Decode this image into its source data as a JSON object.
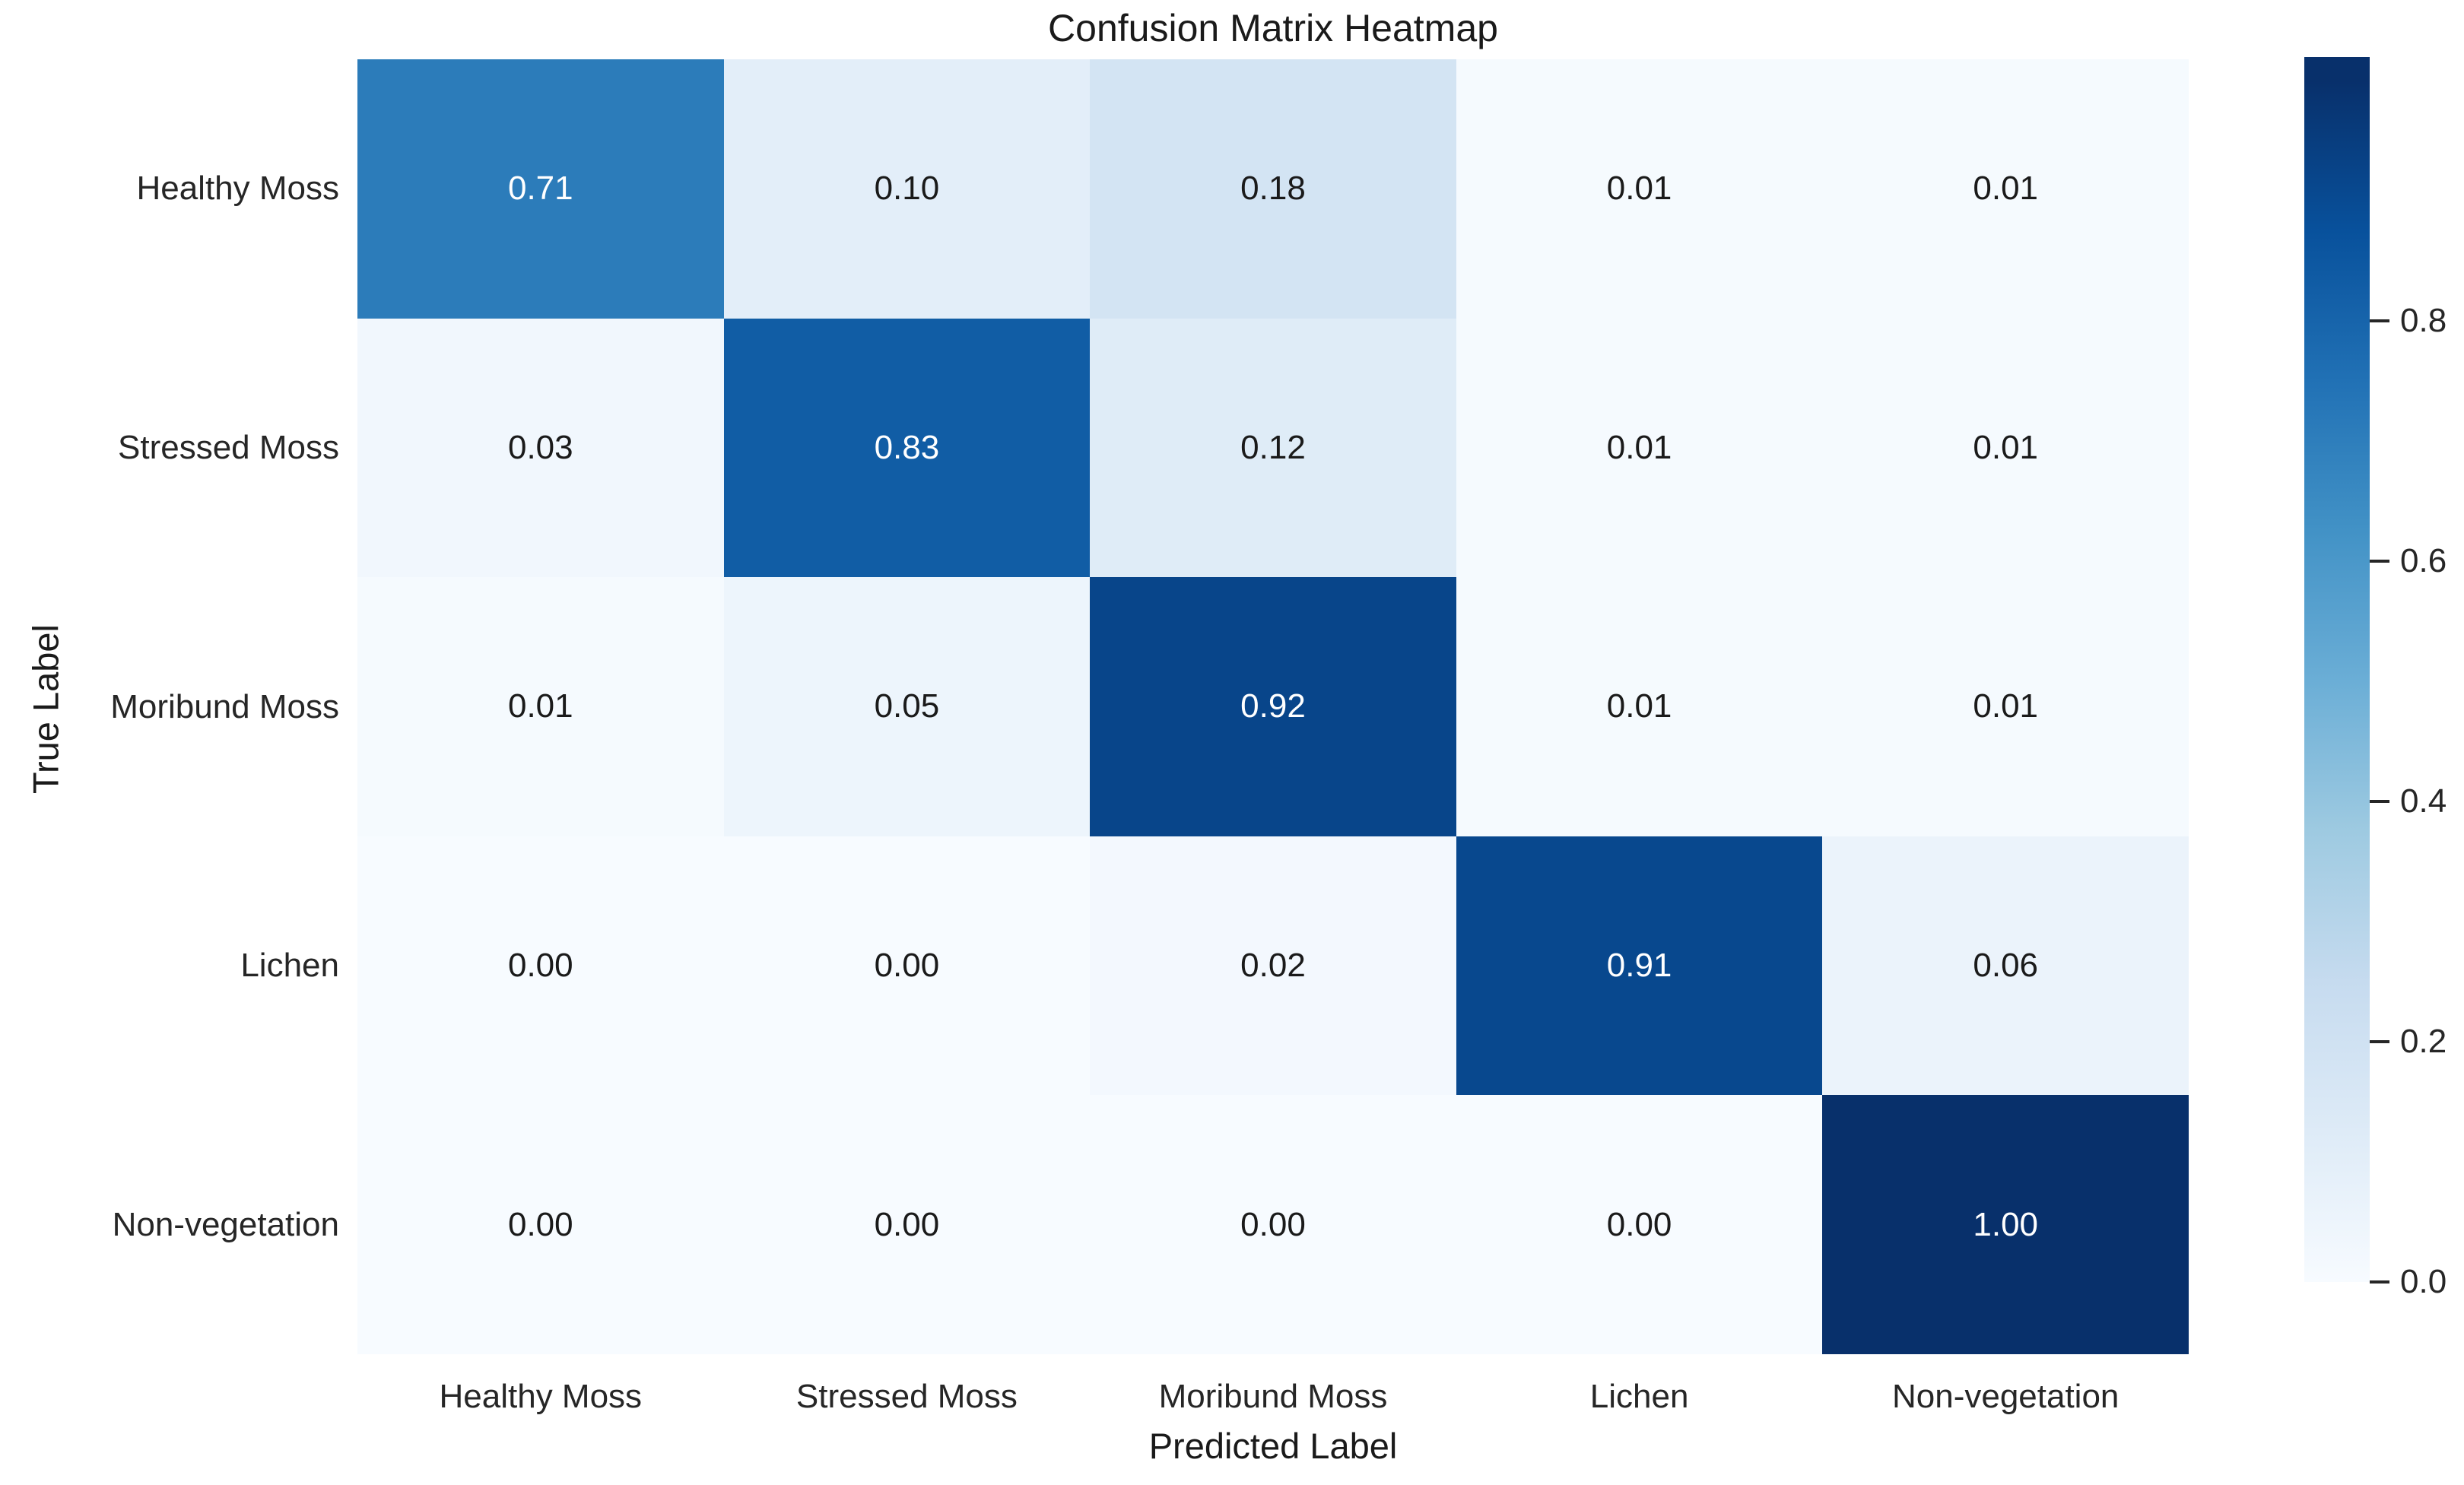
{
  "title": "Confusion Matrix Heatmap",
  "chart_data": {
    "type": "heatmap",
    "title": "Confusion Matrix Heatmap",
    "xlabel": "Predicted Label",
    "ylabel": "True Label",
    "x_categories": [
      "Healthy Moss",
      "Stressed Moss",
      "Moribund Moss",
      "Lichen",
      "Non-vegetation"
    ],
    "y_categories": [
      "Healthy Moss",
      "Stressed Moss",
      "Moribund Moss",
      "Lichen",
      "Non-vegetation"
    ],
    "matrix": [
      [
        0.71,
        0.1,
        0.18,
        0.01,
        0.01
      ],
      [
        0.03,
        0.83,
        0.12,
        0.01,
        0.01
      ],
      [
        0.01,
        0.05,
        0.92,
        0.01,
        0.01
      ],
      [
        0.0,
        0.0,
        0.02,
        0.91,
        0.06
      ],
      [
        0.0,
        0.0,
        0.0,
        0.0,
        1.0
      ]
    ],
    "value_decimals": 2,
    "colormap": "Blues",
    "grid": false,
    "legend_position": "right-colorbar",
    "colorbar": {
      "ticks": [
        0.0,
        0.2,
        0.4,
        0.6,
        0.8
      ],
      "tick_labels": [
        "0.0",
        "0.2",
        "0.4",
        "0.6",
        "0.8"
      ],
      "vmin": 0.0,
      "vmax": 1.02
    }
  },
  "colors": {
    "background": "#ffffff",
    "text_dark": "#1a1a1a",
    "text_light": "#ffffff",
    "tick_text": "#262626",
    "cmap_stops": [
      [
        0.0,
        "#f7fbff"
      ],
      [
        0.125,
        "#deebf7"
      ],
      [
        0.25,
        "#c6dbef"
      ],
      [
        0.375,
        "#9ecae1"
      ],
      [
        0.5,
        "#6baed6"
      ],
      [
        0.625,
        "#4292c6"
      ],
      [
        0.75,
        "#2171b5"
      ],
      [
        0.875,
        "#08519c"
      ],
      [
        1.0,
        "#08306b"
      ]
    ]
  }
}
